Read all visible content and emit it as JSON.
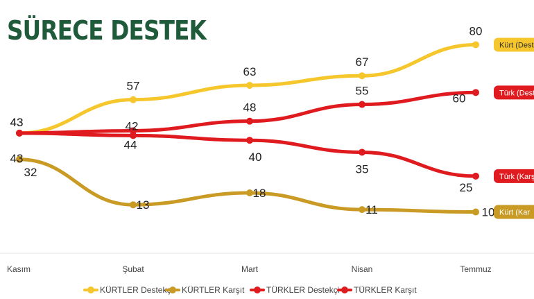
{
  "title": "SÜRECE DESTEK",
  "colors": {
    "kurt_destekci": "#f6c62d",
    "kurt_karsit": "#c99a24",
    "turk_destekci": "#df1b1f",
    "turk_karsit": "#df1b1f",
    "title": "#1f5a3a"
  },
  "chart_data": {
    "type": "line",
    "title": "SÜRECE DESTEK",
    "categories": [
      "Kasım",
      "Şubat",
      "Mart",
      "Nisan",
      "Temmuz"
    ],
    "ylim": [
      0,
      90
    ],
    "grid": false,
    "legend_position": "bottom",
    "series": [
      {
        "key": "kurt_destekci",
        "name": "KÜRTLER Destekçi",
        "values": [
          43,
          57,
          63,
          67,
          80
        ],
        "tag": "Kürt (Deste"
      },
      {
        "key": "turk_destekci",
        "name": "TÜRKLER Destekçi",
        "values": [
          43,
          44,
          48,
          55,
          60
        ],
        "tag": "Türk (Destek"
      },
      {
        "key": "turk_karsit",
        "name": "TÜRKLER Karşıt",
        "values": [
          43,
          42,
          40,
          35,
          25
        ],
        "tag": "Türk (Karşıt"
      },
      {
        "key": "kurt_karsit",
        "name": "KÜRTLER Karşıt",
        "values": [
          32,
          13,
          18,
          11,
          10
        ],
        "tag": "Kürt (Kar"
      }
    ]
  }
}
